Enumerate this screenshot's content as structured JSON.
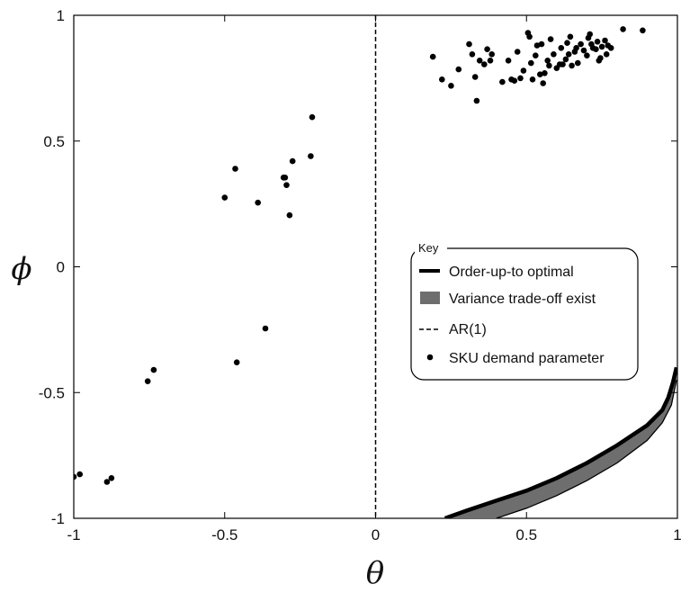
{
  "chart_data": {
    "type": "scatter",
    "xlabel": "θ",
    "ylabel": "ϕ",
    "xlim": [
      -1,
      1
    ],
    "ylim": [
      -1,
      1
    ],
    "xticks": [
      -1,
      -0.5,
      0,
      0.5,
      1
    ],
    "yticks": [
      -1,
      -0.5,
      0,
      0.5,
      1
    ],
    "xtick_labels": [
      "-1",
      "-0.5",
      "0",
      "0.5",
      "1"
    ],
    "ytick_labels": [
      "-1",
      "-0.5",
      "0",
      "0.5",
      "1"
    ],
    "grid": false,
    "legend": {
      "title": "Key",
      "placement": "center-right",
      "entries": [
        {
          "label": "Order-up-to optimal",
          "style": "thick-line"
        },
        {
          "label": "Variance trade-off exist",
          "style": "gray-patch"
        },
        {
          "label": "AR(1)",
          "style": "dashed-line"
        },
        {
          "label": "SKU demand parameter",
          "style": "dot"
        }
      ]
    },
    "ar1_line": {
      "x": 0
    },
    "order_up_to_optimal_curve": [
      [
        0.23,
        -1.0
      ],
      [
        0.3,
        -0.97
      ],
      [
        0.4,
        -0.93
      ],
      [
        0.5,
        -0.89
      ],
      [
        0.6,
        -0.84
      ],
      [
        0.7,
        -0.78
      ],
      [
        0.8,
        -0.71
      ],
      [
        0.9,
        -0.63
      ],
      [
        0.95,
        -0.57
      ],
      [
        0.97,
        -0.52
      ],
      [
        0.985,
        -0.46
      ],
      [
        0.997,
        -0.4
      ]
    ],
    "variance_tradeoff_region_lower": [
      [
        0.4,
        -1.0
      ],
      [
        0.5,
        -0.96
      ],
      [
        0.6,
        -0.91
      ],
      [
        0.7,
        -0.85
      ],
      [
        0.8,
        -0.78
      ],
      [
        0.9,
        -0.69
      ],
      [
        0.95,
        -0.62
      ],
      [
        0.98,
        -0.55
      ],
      [
        0.997,
        -0.45
      ]
    ],
    "sku_points": [
      [
        -1.0,
        -0.835
      ],
      [
        -0.98,
        -0.825
      ],
      [
        -0.89,
        -0.855
      ],
      [
        -0.875,
        -0.84
      ],
      [
        -0.755,
        -0.455
      ],
      [
        -0.735,
        -0.41
      ],
      [
        -0.46,
        -0.38
      ],
      [
        -0.365,
        -0.245
      ],
      [
        -0.5,
        0.275
      ],
      [
        -0.465,
        0.39
      ],
      [
        -0.39,
        0.255
      ],
      [
        -0.305,
        0.355
      ],
      [
        -0.295,
        0.325
      ],
      [
        -0.285,
        0.205
      ],
      [
        -0.275,
        0.42
      ],
      [
        -0.215,
        0.44
      ],
      [
        -0.21,
        0.595
      ],
      [
        -0.3,
        0.355
      ],
      [
        0.19,
        0.835
      ],
      [
        0.22,
        0.745
      ],
      [
        0.25,
        0.72
      ],
      [
        0.275,
        0.785
      ],
      [
        0.31,
        0.885
      ],
      [
        0.32,
        0.845
      ],
      [
        0.33,
        0.755
      ],
      [
        0.335,
        0.66
      ],
      [
        0.345,
        0.82
      ],
      [
        0.36,
        0.805
      ],
      [
        0.37,
        0.865
      ],
      [
        0.38,
        0.82
      ],
      [
        0.385,
        0.845
      ],
      [
        0.42,
        0.735
      ],
      [
        0.44,
        0.82
      ],
      [
        0.45,
        0.745
      ],
      [
        0.46,
        0.74
      ],
      [
        0.47,
        0.855
      ],
      [
        0.48,
        0.75
      ],
      [
        0.49,
        0.78
      ],
      [
        0.505,
        0.93
      ],
      [
        0.51,
        0.915
      ],
      [
        0.515,
        0.81
      ],
      [
        0.52,
        0.745
      ],
      [
        0.53,
        0.84
      ],
      [
        0.535,
        0.88
      ],
      [
        0.545,
        0.765
      ],
      [
        0.55,
        0.885
      ],
      [
        0.555,
        0.73
      ],
      [
        0.56,
        0.77
      ],
      [
        0.57,
        0.82
      ],
      [
        0.575,
        0.8
      ],
      [
        0.58,
        0.905
      ],
      [
        0.59,
        0.845
      ],
      [
        0.6,
        0.79
      ],
      [
        0.61,
        0.805
      ],
      [
        0.615,
        0.87
      ],
      [
        0.62,
        0.805
      ],
      [
        0.63,
        0.825
      ],
      [
        0.635,
        0.89
      ],
      [
        0.64,
        0.845
      ],
      [
        0.645,
        0.915
      ],
      [
        0.65,
        0.8
      ],
      [
        0.66,
        0.855
      ],
      [
        0.665,
        0.87
      ],
      [
        0.67,
        0.81
      ],
      [
        0.68,
        0.885
      ],
      [
        0.69,
        0.86
      ],
      [
        0.7,
        0.84
      ],
      [
        0.705,
        0.91
      ],
      [
        0.71,
        0.925
      ],
      [
        0.715,
        0.885
      ],
      [
        0.72,
        0.87
      ],
      [
        0.73,
        0.865
      ],
      [
        0.735,
        0.895
      ],
      [
        0.74,
        0.82
      ],
      [
        0.745,
        0.83
      ],
      [
        0.75,
        0.875
      ],
      [
        0.76,
        0.9
      ],
      [
        0.765,
        0.845
      ],
      [
        0.77,
        0.88
      ],
      [
        0.78,
        0.87
      ],
      [
        0.82,
        0.945
      ],
      [
        0.885,
        0.94
      ]
    ]
  }
}
